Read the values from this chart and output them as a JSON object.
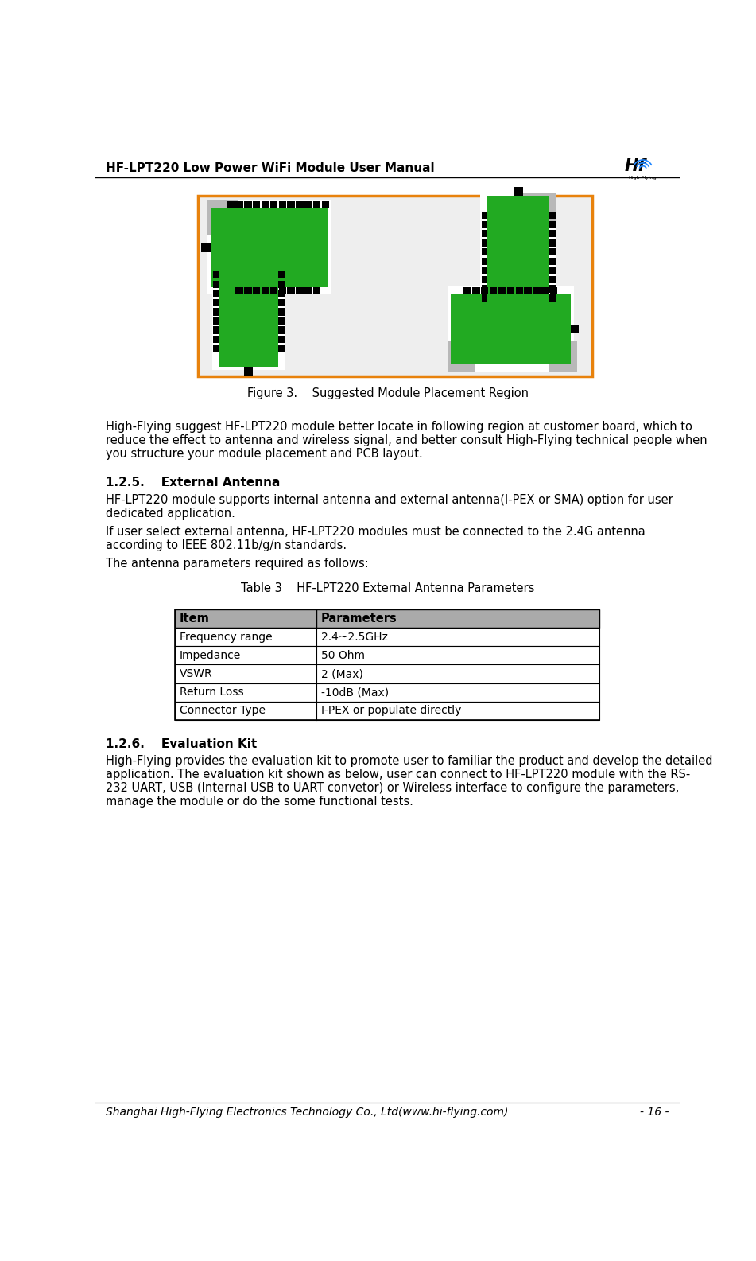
{
  "header_title": "HF-LPT220 Low Power WiFi Module User Manual",
  "footer_text": "Shanghai High-Flying Electronics Technology Co., Ltd(www.hi-flying.com)",
  "footer_page": "- 16 -",
  "figure_caption": "Figure 3.    Suggested Module Placement Region",
  "para1_lines": [
    "High-Flying suggest HF-LPT220 module better locate in following region at customer board, which to",
    "reduce the effect to antenna and wireless signal, and better consult High-Flying technical people when",
    "you structure your module placement and PCB layout."
  ],
  "section_125_title": "1.2.5.    External Antenna",
  "section_125_para1_lines": [
    "HF-LPT220 module supports internal antenna and external antenna(I-PEX or SMA) option for user",
    "dedicated application."
  ],
  "section_125_para2_lines": [
    "If user select external antenna, HF-LPT220 modules must be connected to the 2.4G antenna",
    "according to IEEE 802.11b/g/n standards."
  ],
  "section_125_para3": "The antenna parameters required as follows:",
  "table_caption": "Table 3    HF-LPT220 External Antenna Parameters",
  "table_headers": [
    "Item",
    "Parameters"
  ],
  "table_rows": [
    [
      "Frequency range",
      "2.4~2.5GHz"
    ],
    [
      "Impedance",
      "50 Ohm"
    ],
    [
      "VSWR",
      "2 (Max)"
    ],
    [
      "Return Loss",
      "-10dB (Max)"
    ],
    [
      "Connector Type",
      "I-PEX or populate directly"
    ]
  ],
  "section_126_title": "1.2.6.    Evaluation Kit",
  "section_126_para_lines": [
    "High-Flying provides the evaluation kit to promote user to familiar the product and develop the detailed",
    "application. The evaluation kit shown as below, user can connect to HF-LPT220 module with the RS-",
    "232 UART, USB (Internal USB to UART convetor) or Wireless interface to configure the parameters,",
    "manage the module or do the some functional tests."
  ],
  "orange_border": "#E8820C",
  "green_color": "#22AA22",
  "gray_color": "#B8B8B8",
  "black_color": "#000000",
  "white_color": "#FFFFFF",
  "light_gray_bg": "#EEEEEE",
  "table_header_bg": "#AAAAAA",
  "table_border_color": "#555555"
}
